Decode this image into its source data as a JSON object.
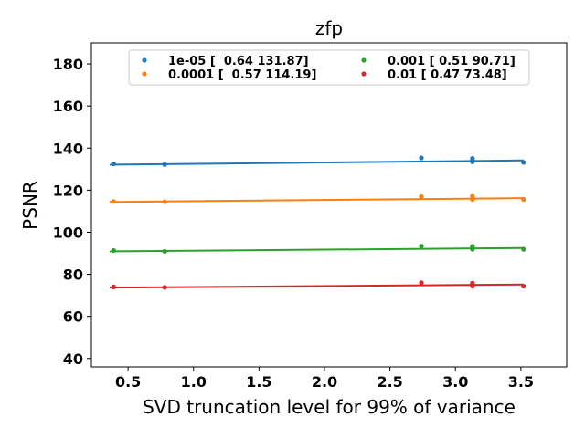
{
  "chart_data": {
    "type": "scatter",
    "title": "zfp",
    "xlabel": "SVD truncation level for 99% of variance",
    "ylabel": "PSNR",
    "xlim": [
      0.22,
      3.85
    ],
    "ylim": [
      36,
      190
    ],
    "xticks": [
      0.5,
      1.0,
      1.5,
      2.0,
      2.5,
      3.0,
      3.5
    ],
    "xtick_labels": [
      "0.5",
      "1.0",
      "1.5",
      "2.0",
      "2.5",
      "3.0",
      "3.5"
    ],
    "yticks": [
      40,
      60,
      80,
      100,
      120,
      140,
      160,
      180
    ],
    "ytick_labels": [
      "40",
      "60",
      "80",
      "100",
      "120",
      "140",
      "160",
      "180"
    ],
    "grid": false,
    "legend_position": "top-center",
    "series": [
      {
        "name": "1e-05 [  0.64 131.87]",
        "color": "#1f77b4",
        "fit": {
          "slope": 0.64,
          "intercept": 131.87
        },
        "points": [
          [
            0.39,
            132.5
          ],
          [
            0.78,
            132.2
          ],
          [
            2.74,
            135.3
          ],
          [
            3.13,
            133.5
          ],
          [
            3.13,
            134.3
          ],
          [
            3.13,
            135.1
          ],
          [
            3.52,
            133.2
          ]
        ]
      },
      {
        "name": "0.0001 [  0.57 114.19]",
        "color": "#ff7f0e",
        "fit": {
          "slope": 0.57,
          "intercept": 114.19
        },
        "points": [
          [
            0.39,
            114.6
          ],
          [
            0.78,
            114.5
          ],
          [
            2.74,
            116.9
          ],
          [
            3.13,
            115.6
          ],
          [
            3.13,
            116.4
          ],
          [
            3.13,
            117.1
          ],
          [
            3.52,
            115.6
          ]
        ]
      },
      {
        "name": "0.001 [ 0.51 90.71]",
        "color": "#2ca02c",
        "fit": {
          "slope": 0.51,
          "intercept": 90.71
        },
        "points": [
          [
            0.39,
            91.3
          ],
          [
            0.78,
            90.9
          ],
          [
            2.74,
            93.4
          ],
          [
            3.13,
            91.9
          ],
          [
            3.13,
            92.6
          ],
          [
            3.13,
            93.3
          ],
          [
            3.52,
            91.9
          ]
        ]
      },
      {
        "name": "0.01 [ 0.47 73.48]",
        "color": "#d62728",
        "fit": {
          "slope": 0.47,
          "intercept": 73.48
        },
        "points": [
          [
            0.39,
            74.0
          ],
          [
            0.78,
            73.8
          ],
          [
            2.74,
            76.0
          ],
          [
            3.13,
            74.3
          ],
          [
            3.13,
            75.1
          ],
          [
            3.13,
            75.8
          ],
          [
            3.52,
            74.3
          ]
        ]
      }
    ]
  }
}
